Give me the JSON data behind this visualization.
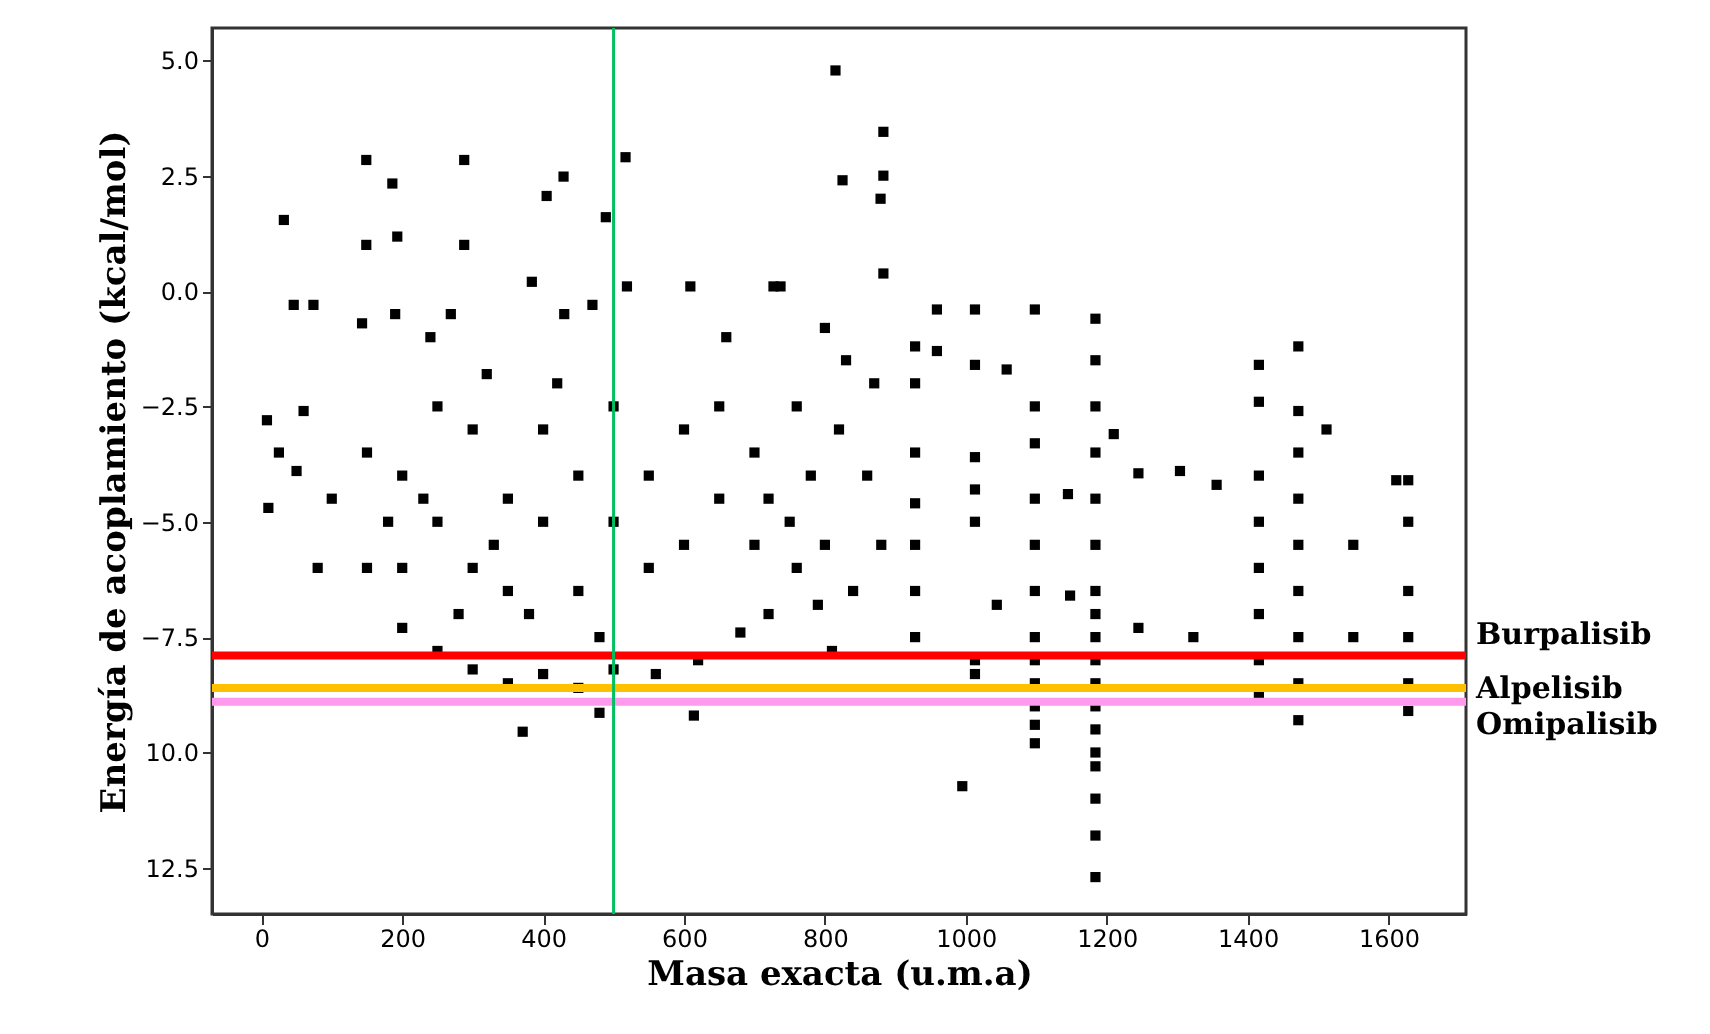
{
  "chart_data": {
    "type": "scatter",
    "xlabel": "Masa exacta (u.m.a)",
    "ylabel": "Energía de acoplamiento (kcal/mol)",
    "xlim": [
      -70,
      1710
    ],
    "xticks": [
      0,
      200,
      400,
      600,
      800,
      1000,
      1200,
      1400,
      1600
    ],
    "ylim": [
      -13.5,
      5.7
    ],
    "yticks": [
      {
        "value": 5,
        "label": "5.0"
      },
      {
        "value": 2.5,
        "label": "2.5"
      },
      {
        "value": 0,
        "label": "0.0"
      },
      {
        "value": -2.5,
        "label": "−2.5"
      },
      {
        "value": -5,
        "label": "−5.0"
      },
      {
        "value": -7.5,
        "label": "−7.5"
      },
      {
        "value": -10,
        "label": "10.0"
      },
      {
        "value": -12.5,
        "label": "12.5"
      }
    ],
    "marker": "square",
    "grid": false,
    "series": [
      {
        "color": "#000000",
        "x": [
          149,
          288,
          186,
          32,
          405,
          429,
          489,
          517,
          149,
          193,
          288,
          371,
          480,
          614,
          815,
          825,
          883,
          883,
          879,
          883,
          995,
          1184,
          1184,
          1184,
          1184,
          1184,
          1184,
          1184,
          1184,
          1184,
          1184,
          1184,
          1184,
          1184,
          1184,
          1184,
          1184,
          1184,
          1184,
          1098,
          1098,
          1098,
          1098,
          1098,
          1098,
          1098,
          1098,
          1098,
          1098,
          1098,
          1098,
          1013,
          1013,
          1013,
          1013,
          1013,
          1013,
          1013,
          928,
          928,
          928,
          928,
          928,
          928,
          928,
          1416,
          1416,
          1416,
          1416,
          1416,
          1416,
          1416,
          1416,
          1472,
          1472,
          1472,
          1472,
          1472,
          1472,
          1472,
          1472,
          1472,
          1628,
          1628,
          1628,
          1628,
          1628,
          1628,
          1245,
          1304,
          1356,
          1323,
          1245,
          1550,
          1550,
          1210,
          1512,
          1611,
          959,
          959,
          1145,
          1148,
          1058,
          1044,
          8,
          10,
          25,
          60,
          80,
          100,
          50,
          46,
          74,
          143,
          190,
          269,
          240,
          384,
          430,
          470,
          519,
          609,
          660,
          727,
          150,
          200,
          250,
          300,
          350,
          400,
          450,
          500,
          560,
          620,
          680,
          720,
          760,
          200,
          250,
          300,
          300,
          350,
          350,
          400,
          400,
          450,
          450,
          500,
          500,
          550,
          550,
          600,
          600,
          650,
          650,
          700,
          700,
          250,
          200,
          150,
          180,
          280,
          330,
          380,
          420,
          480,
          230,
          320,
          737,
          800,
          760,
          780,
          800,
          820,
          840,
          860,
          870,
          810,
          750,
          830,
          880,
          720,
          790
        ],
        "values": [
          2.84,
          2.84,
          2.33,
          1.54,
          2.06,
          2.48,
          1.6,
          2.9,
          1.0,
          1.18,
          1.0,
          -9.55,
          -9.14,
          -9.2,
          4.78,
          2.4,
          3.45,
          2.5,
          2.0,
          0.38,
          -10.73,
          -0.6,
          -1.5,
          -2.5,
          -3.5,
          -4.5,
          -5.5,
          -6.5,
          -7.0,
          -7.5,
          -8.0,
          -8.5,
          -9.0,
          -9.5,
          -10.0,
          -10.3,
          -11.0,
          -11.8,
          -12.7,
          -0.4,
          -2.5,
          -3.3,
          -4.5,
          -5.5,
          -6.5,
          -7.5,
          -8.0,
          -8.5,
          -9.0,
          -9.4,
          -9.8,
          -0.4,
          -1.6,
          -3.6,
          -4.3,
          -5.0,
          -8.0,
          -8.3,
          -1.2,
          -2.0,
          -3.5,
          -4.6,
          -5.5,
          -6.5,
          -7.5,
          -1.6,
          -2.4,
          -4.0,
          -5.0,
          -6.0,
          -7.0,
          -8.0,
          -8.8,
          -1.2,
          -2.6,
          -3.5,
          -4.5,
          -5.5,
          -6.5,
          -7.5,
          -8.5,
          -9.3,
          -4.1,
          -5.0,
          -6.5,
          -7.5,
          -8.5,
          -9.1,
          -3.95,
          -3.9,
          -4.2,
          -7.5,
          -7.3,
          -5.5,
          -7.5,
          -3.1,
          -3.0,
          -4.1,
          -0.4,
          -1.3,
          -4.4,
          -6.6,
          -1.7,
          -6.8,
          -2.8,
          -4.7,
          -3.5,
          -2.6,
          -6.0,
          -4.5,
          -3.9,
          -0.3,
          -0.3,
          -0.7,
          -0.5,
          -0.5,
          -1.0,
          0.2,
          -0.5,
          -0.3,
          0.1,
          0.1,
          -1.0,
          0.1,
          -6.0,
          -7.3,
          -7.8,
          -8.2,
          -8.5,
          -8.3,
          -8.6,
          -8.2,
          -8.3,
          -8.0,
          -7.4,
          -7.0,
          -6.0,
          -4.0,
          -5.0,
          -3.0,
          -6.0,
          -4.5,
          -6.5,
          -5.0,
          -3.0,
          -4.0,
          -6.5,
          -5.0,
          -2.5,
          -4.0,
          -6.0,
          -3.0,
          -5.5,
          -4.5,
          -2.5,
          -5.5,
          -3.5,
          -2.5,
          -6.0,
          -3.5,
          -5.0,
          -7.0,
          -5.5,
          -7.0,
          -2.0,
          -7.5,
          -4.5,
          -1.8,
          0.1,
          -0.8,
          -2.5,
          -4.0,
          -5.5,
          -3.0,
          -6.5,
          -4.0,
          -2.0,
          -7.8,
          -5.0,
          -1.5,
          -5.5,
          -4.5,
          -6.8
        ]
      }
    ],
    "ref_lines": [
      {
        "axis": "y",
        "value": -7.9,
        "label": "Burpalisib",
        "color": "#ff0000"
      },
      {
        "axis": "y",
        "value": -8.6,
        "label": "Alpelisib",
        "color": "#ffc000"
      },
      {
        "axis": "y",
        "value": -8.9,
        "label": "Omipalisib",
        "color": "#ff99ee"
      },
      {
        "axis": "x",
        "value": 500,
        "color": "#00c060"
      }
    ]
  }
}
